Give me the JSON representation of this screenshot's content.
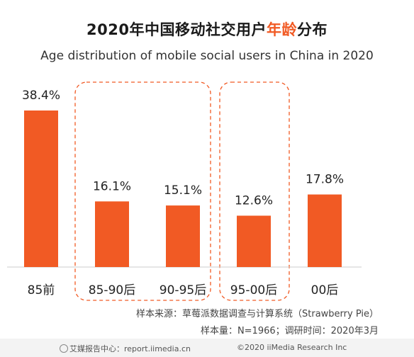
{
  "title": {
    "main": "2020年中国移动社交用户",
    "accent": "年龄",
    "tail": "分布"
  },
  "subtitle": "Age distribution of mobile social users in China in 2020",
  "chart_data": {
    "type": "bar",
    "categories": [
      "85前",
      "85-90后",
      "90-95后",
      "95-00后",
      "00后"
    ],
    "values": [
      38.4,
      16.1,
      15.1,
      12.6,
      17.8
    ],
    "value_labels": [
      "38.4%",
      "16.1%",
      "15.1%",
      "12.6%",
      "17.8%"
    ],
    "ylim": [
      0,
      40
    ],
    "bar_color": "#f15a24",
    "highlight_groups": [
      [
        "85-90后",
        "90-95后"
      ],
      [
        "95-00后"
      ]
    ]
  },
  "source": "样本来源：草莓派数据调查与计算系统（Strawberry Pie）",
  "sample": "样本量：N=1966；调研时间：2020年3月",
  "footer": {
    "left": "艾媒报告中心：report.iimedia.cn",
    "right": "©2020  iiMedia Research  Inc"
  },
  "colors": {
    "accent": "#f15a24",
    "axis": "#cccccc"
  },
  "icons": {
    "footer_logo": "iimedia-logo-icon"
  }
}
